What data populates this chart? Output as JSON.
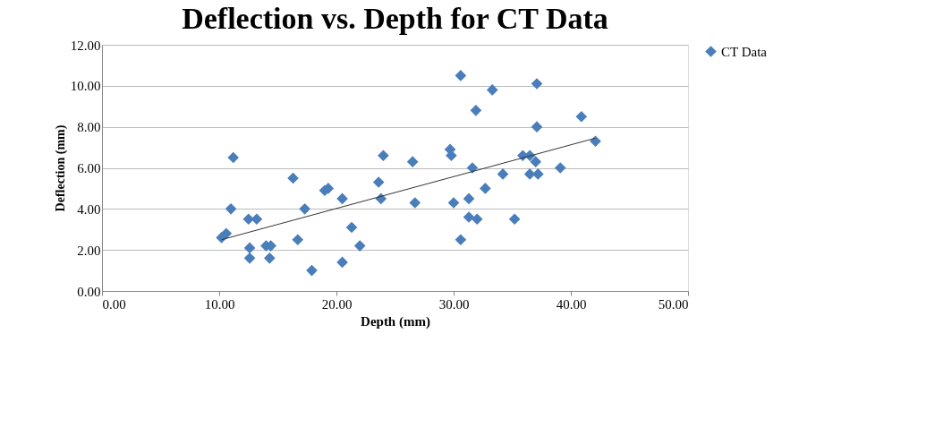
{
  "chart_data": {
    "type": "scatter",
    "title": "Deflection vs. Depth for CT Data",
    "xlabel": "Depth (mm)",
    "ylabel": "Deflection (mm)",
    "xlim": [
      0,
      50
    ],
    "xticks": [
      {
        "value": 0,
        "label": "0.00"
      },
      {
        "value": 10,
        "label": "10.00"
      },
      {
        "value": 20,
        "label": "20.00"
      },
      {
        "value": 30,
        "label": "30.00"
      },
      {
        "value": 40,
        "label": "40.00"
      },
      {
        "value": 50,
        "label": "50.00"
      }
    ],
    "ylim": [
      0,
      12
    ],
    "yticks": [
      {
        "value": 0,
        "label": "0.00"
      },
      {
        "value": 2,
        "label": "2.00"
      },
      {
        "value": 4,
        "label": "4.00"
      },
      {
        "value": 6,
        "label": "6.00"
      },
      {
        "value": 8,
        "label": "8.00"
      },
      {
        "value": 10,
        "label": "10.00"
      },
      {
        "value": 12,
        "label": "12.00"
      }
    ],
    "grid": "y",
    "legend": "right",
    "series": [
      {
        "name": "CT Data",
        "color": "#4a7ebb",
        "marker": "diamond",
        "x": [
          10.2,
          10.6,
          11.2,
          11.0,
          12.5,
          13.2,
          12.6,
          12.6,
          14.0,
          14.4,
          14.3,
          16.3,
          16.7,
          17.3,
          17.9,
          19.3,
          19.0,
          20.5,
          21.3,
          20.5,
          22.0,
          23.6,
          24.0,
          23.8,
          26.5,
          26.7,
          29.7,
          29.8,
          30.0,
          30.6,
          30.6,
          31.3,
          31.3,
          31.6,
          32.0,
          31.9,
          32.7,
          33.3,
          34.2,
          35.2,
          35.9,
          36.5,
          36.5,
          37.0,
          37.2,
          37.1,
          37.1,
          39.1,
          40.9,
          42.1
        ],
        "values": [
          2.6,
          2.8,
          6.5,
          4.0,
          3.5,
          3.5,
          2.1,
          1.6,
          2.2,
          2.2,
          1.6,
          5.5,
          2.5,
          4.0,
          1.0,
          5.0,
          4.9,
          4.5,
          3.1,
          1.4,
          2.2,
          5.3,
          6.6,
          4.5,
          6.3,
          4.3,
          6.9,
          6.6,
          4.3,
          10.5,
          2.5,
          4.5,
          3.6,
          6.0,
          3.5,
          8.8,
          5.0,
          9.8,
          5.7,
          3.5,
          6.6,
          6.6,
          5.7,
          6.3,
          5.7,
          10.1,
          8.0,
          6.0,
          8.5,
          7.3
        ]
      },
      {
        "color": "#333333",
        "type": "line",
        "marker": "none",
        "x": [
          10.2,
          42.1
        ],
        "values": [
          2.5,
          7.45
        ]
      }
    ]
  }
}
